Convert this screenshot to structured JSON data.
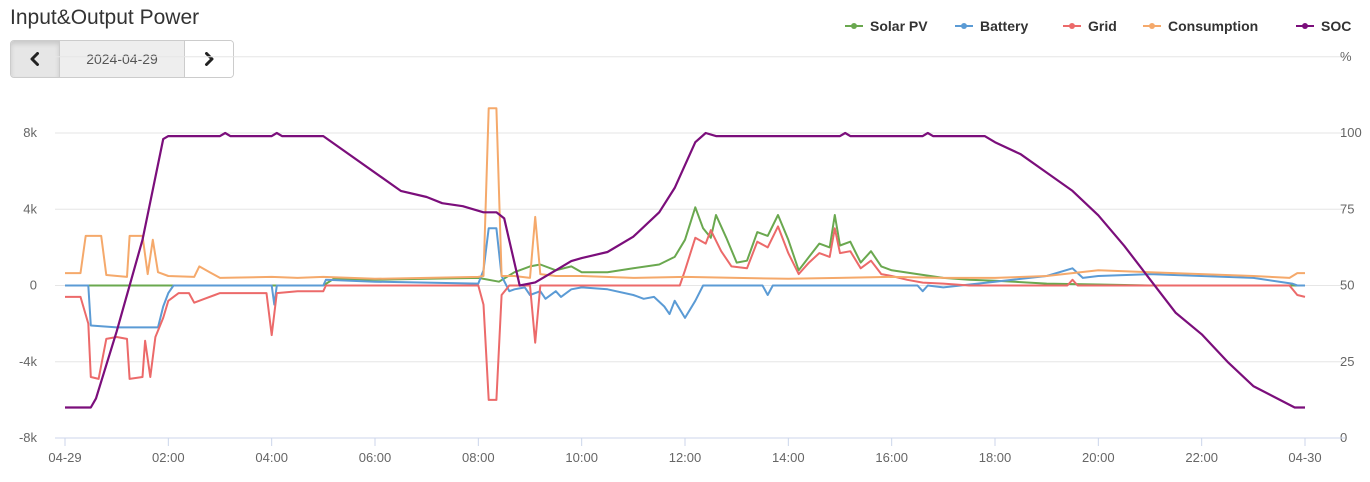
{
  "title": "Input&Output Power",
  "date_nav": {
    "date": "2024-04-29",
    "prev_icon": "chevron-left-icon",
    "next_icon": "chevron-right-icon"
  },
  "chart_data": {
    "type": "line",
    "title": "",
    "right_axis_unit": "%",
    "x_ticks": [
      "04-29",
      "02:00",
      "04:00",
      "06:00",
      "08:00",
      "10:00",
      "12:00",
      "14:00",
      "16:00",
      "18:00",
      "20:00",
      "22:00",
      "04-30"
    ],
    "y_left_ticks": [
      "-8k",
      "-4k",
      "0",
      "4k",
      "8k"
    ],
    "y_right_ticks": [
      "0",
      "25",
      "50",
      "75",
      "100"
    ],
    "ylim_left": [
      -8000,
      8000
    ],
    "ylim_right": [
      0,
      100
    ],
    "xlim_hours": [
      0,
      24
    ],
    "grid": true,
    "legend_position": "top-right",
    "series": [
      {
        "name": "Solar PV",
        "color": "#6aa84f",
        "axis": "left",
        "points": [
          [
            0,
            0
          ],
          [
            5.0,
            0
          ],
          [
            5.2,
            350
          ],
          [
            6,
            300
          ],
          [
            7,
            350
          ],
          [
            8,
            400
          ],
          [
            8.4,
            200
          ],
          [
            8.7,
            700
          ],
          [
            9,
            1000
          ],
          [
            9.2,
            1100
          ],
          [
            9.5,
            800
          ],
          [
            9.8,
            1000
          ],
          [
            10,
            700
          ],
          [
            10.5,
            700
          ],
          [
            11,
            900
          ],
          [
            11.5,
            1100
          ],
          [
            11.8,
            1500
          ],
          [
            12,
            2400
          ],
          [
            12.2,
            4100
          ],
          [
            12.35,
            3000
          ],
          [
            12.5,
            2500
          ],
          [
            12.6,
            3700
          ],
          [
            12.8,
            2500
          ],
          [
            13,
            1200
          ],
          [
            13.2,
            1300
          ],
          [
            13.4,
            2800
          ],
          [
            13.6,
            2600
          ],
          [
            13.8,
            3700
          ],
          [
            14,
            2400
          ],
          [
            14.2,
            800
          ],
          [
            14.4,
            1500
          ],
          [
            14.6,
            2200
          ],
          [
            14.8,
            2000
          ],
          [
            14.9,
            3700
          ],
          [
            15.0,
            2100
          ],
          [
            15.2,
            2300
          ],
          [
            15.4,
            1200
          ],
          [
            15.6,
            1800
          ],
          [
            15.8,
            1000
          ],
          [
            16,
            800
          ],
          [
            16.5,
            600
          ],
          [
            17,
            400
          ],
          [
            17.5,
            300
          ],
          [
            18,
            250
          ],
          [
            19,
            100
          ],
          [
            20,
            50
          ],
          [
            21,
            0
          ],
          [
            24,
            0
          ]
        ]
      },
      {
        "name": "Battery",
        "color": "#5b9bd5",
        "axis": "left",
        "points": [
          [
            0,
            0
          ],
          [
            0.45,
            0
          ],
          [
            0.5,
            -2100
          ],
          [
            1,
            -2200
          ],
          [
            1.8,
            -2200
          ],
          [
            1.9,
            -1100
          ],
          [
            2.0,
            -400
          ],
          [
            2.1,
            0
          ],
          [
            4,
            0
          ],
          [
            4.05,
            -1000
          ],
          [
            4.1,
            0
          ],
          [
            5,
            0
          ],
          [
            5.05,
            300
          ],
          [
            6,
            200
          ],
          [
            7,
            150
          ],
          [
            8,
            100
          ],
          [
            8.1,
            800
          ],
          [
            8.2,
            3000
          ],
          [
            8.35,
            3000
          ],
          [
            8.45,
            500
          ],
          [
            8.6,
            -300
          ],
          [
            8.7,
            -200
          ],
          [
            8.9,
            -100
          ],
          [
            9.0,
            -500
          ],
          [
            9.2,
            -300
          ],
          [
            9.3,
            -700
          ],
          [
            9.5,
            -300
          ],
          [
            9.6,
            -600
          ],
          [
            9.8,
            -200
          ],
          [
            10,
            -100
          ],
          [
            10.5,
            -200
          ],
          [
            11,
            -500
          ],
          [
            11.2,
            -700
          ],
          [
            11.4,
            -600
          ],
          [
            11.6,
            -1100
          ],
          [
            11.7,
            -1500
          ],
          [
            11.8,
            -800
          ],
          [
            12.0,
            -1700
          ],
          [
            12.2,
            -800
          ],
          [
            12.35,
            0
          ],
          [
            13.5,
            0
          ],
          [
            13.6,
            -500
          ],
          [
            13.7,
            0
          ],
          [
            16.5,
            0
          ],
          [
            16.6,
            -300
          ],
          [
            16.7,
            0
          ],
          [
            17,
            -100
          ],
          [
            18,
            200
          ],
          [
            19,
            500
          ],
          [
            19.5,
            900
          ],
          [
            19.7,
            400
          ],
          [
            20,
            500
          ],
          [
            21,
            600
          ],
          [
            22,
            500
          ],
          [
            23,
            400
          ],
          [
            23.75,
            100
          ],
          [
            23.85,
            0
          ],
          [
            24,
            0
          ]
        ]
      },
      {
        "name": "Grid",
        "color": "#ec6a6a",
        "axis": "left",
        "points": [
          [
            0,
            -600
          ],
          [
            0.3,
            -600
          ],
          [
            0.45,
            -2000
          ],
          [
            0.5,
            -4800
          ],
          [
            0.65,
            -4900
          ],
          [
            0.8,
            -2800
          ],
          [
            1.0,
            -2700
          ],
          [
            1.2,
            -2800
          ],
          [
            1.25,
            -4900
          ],
          [
            1.5,
            -4800
          ],
          [
            1.55,
            -2900
          ],
          [
            1.65,
            -4800
          ],
          [
            1.75,
            -2700
          ],
          [
            1.9,
            -1700
          ],
          [
            2.0,
            -800
          ],
          [
            2.2,
            -400
          ],
          [
            2.4,
            -400
          ],
          [
            2.5,
            -900
          ],
          [
            2.7,
            -700
          ],
          [
            2.9,
            -500
          ],
          [
            3,
            -400
          ],
          [
            3.5,
            -400
          ],
          [
            3.9,
            -400
          ],
          [
            4.0,
            -2600
          ],
          [
            4.1,
            -400
          ],
          [
            4.5,
            -300
          ],
          [
            5.0,
            -300
          ],
          [
            5.05,
            0
          ],
          [
            8,
            0
          ],
          [
            8.1,
            -1000
          ],
          [
            8.2,
            -6000
          ],
          [
            8.35,
            -6000
          ],
          [
            8.45,
            -500
          ],
          [
            8.6,
            0
          ],
          [
            9.0,
            0
          ],
          [
            9.1,
            -3000
          ],
          [
            9.2,
            0
          ],
          [
            11.9,
            0
          ],
          [
            12.0,
            800
          ],
          [
            12.2,
            2500
          ],
          [
            12.4,
            2200
          ],
          [
            12.5,
            2900
          ],
          [
            12.7,
            1800
          ],
          [
            12.9,
            1000
          ],
          [
            13.2,
            900
          ],
          [
            13.4,
            2300
          ],
          [
            13.6,
            2000
          ],
          [
            13.8,
            3100
          ],
          [
            14,
            1700
          ],
          [
            14.2,
            600
          ],
          [
            14.4,
            1200
          ],
          [
            14.6,
            1700
          ],
          [
            14.8,
            1500
          ],
          [
            14.9,
            3000
          ],
          [
            15.0,
            1700
          ],
          [
            15.2,
            1800
          ],
          [
            15.4,
            900
          ],
          [
            15.6,
            1300
          ],
          [
            15.8,
            600
          ],
          [
            16,
            500
          ],
          [
            16.3,
            300
          ],
          [
            16.6,
            150
          ],
          [
            17,
            100
          ],
          [
            17.5,
            0
          ],
          [
            19.4,
            0
          ],
          [
            19.5,
            300
          ],
          [
            19.6,
            0
          ],
          [
            23.7,
            0
          ],
          [
            23.85,
            -500
          ],
          [
            24,
            -600
          ]
        ]
      },
      {
        "name": "Consumption",
        "color": "#f5a96b",
        "axis": "left",
        "points": [
          [
            0,
            650
          ],
          [
            0.3,
            650
          ],
          [
            0.4,
            2600
          ],
          [
            0.7,
            2600
          ],
          [
            0.8,
            550
          ],
          [
            1.2,
            450
          ],
          [
            1.25,
            2600
          ],
          [
            1.5,
            2600
          ],
          [
            1.6,
            600
          ],
          [
            1.7,
            2400
          ],
          [
            1.8,
            700
          ],
          [
            2.0,
            500
          ],
          [
            2.5,
            450
          ],
          [
            2.6,
            1000
          ],
          [
            2.8,
            700
          ],
          [
            3,
            400
          ],
          [
            4,
            450
          ],
          [
            4.5,
            400
          ],
          [
            5,
            450
          ],
          [
            6,
            350
          ],
          [
            7,
            400
          ],
          [
            8,
            450
          ],
          [
            8.1,
            500
          ],
          [
            8.2,
            9300
          ],
          [
            8.35,
            9300
          ],
          [
            8.45,
            500
          ],
          [
            8.7,
            500
          ],
          [
            9.0,
            400
          ],
          [
            9.1,
            3600
          ],
          [
            9.2,
            600
          ],
          [
            9.5,
            500
          ],
          [
            10,
            500
          ],
          [
            11,
            400
          ],
          [
            12,
            450
          ],
          [
            13,
            400
          ],
          [
            14,
            350
          ],
          [
            15,
            400
          ],
          [
            16,
            450
          ],
          [
            17,
            400
          ],
          [
            18,
            400
          ],
          [
            19,
            500
          ],
          [
            20,
            800
          ],
          [
            21,
            700
          ],
          [
            22,
            600
          ],
          [
            23,
            500
          ],
          [
            23.7,
            400
          ],
          [
            23.85,
            650
          ],
          [
            24,
            650
          ]
        ]
      },
      {
        "name": "SOC",
        "color": "#7b0e7b",
        "axis": "right",
        "points": [
          [
            0,
            10
          ],
          [
            0.5,
            10
          ],
          [
            0.6,
            13
          ],
          [
            1.0,
            35
          ],
          [
            1.5,
            65
          ],
          [
            1.9,
            98
          ],
          [
            2.0,
            99
          ],
          [
            3.0,
            99
          ],
          [
            3.1,
            100
          ],
          [
            3.2,
            99
          ],
          [
            4.0,
            99
          ],
          [
            4.1,
            100
          ],
          [
            4.2,
            99
          ],
          [
            5.0,
            99
          ],
          [
            6.5,
            81
          ],
          [
            7.0,
            79
          ],
          [
            7.3,
            77
          ],
          [
            7.7,
            76
          ],
          [
            8.1,
            74
          ],
          [
            8.35,
            74
          ],
          [
            8.5,
            72
          ],
          [
            8.8,
            50
          ],
          [
            9.1,
            51
          ],
          [
            9.5,
            55
          ],
          [
            9.8,
            58
          ],
          [
            10.0,
            59
          ],
          [
            10.5,
            61
          ],
          [
            11.0,
            66
          ],
          [
            11.5,
            74
          ],
          [
            11.8,
            82
          ],
          [
            12.2,
            97
          ],
          [
            12.4,
            100
          ],
          [
            12.6,
            99
          ],
          [
            15.0,
            99
          ],
          [
            15.1,
            100
          ],
          [
            15.2,
            99
          ],
          [
            16.6,
            99
          ],
          [
            16.7,
            100
          ],
          [
            16.8,
            99
          ],
          [
            17.8,
            99
          ],
          [
            18.0,
            97
          ],
          [
            18.5,
            93
          ],
          [
            19.0,
            87
          ],
          [
            19.5,
            81
          ],
          [
            20,
            73
          ],
          [
            20.5,
            63
          ],
          [
            21,
            52
          ],
          [
            21.5,
            41
          ],
          [
            22,
            34
          ],
          [
            22.5,
            25
          ],
          [
            23,
            17
          ],
          [
            23.8,
            10
          ],
          [
            24,
            10
          ]
        ]
      }
    ]
  }
}
